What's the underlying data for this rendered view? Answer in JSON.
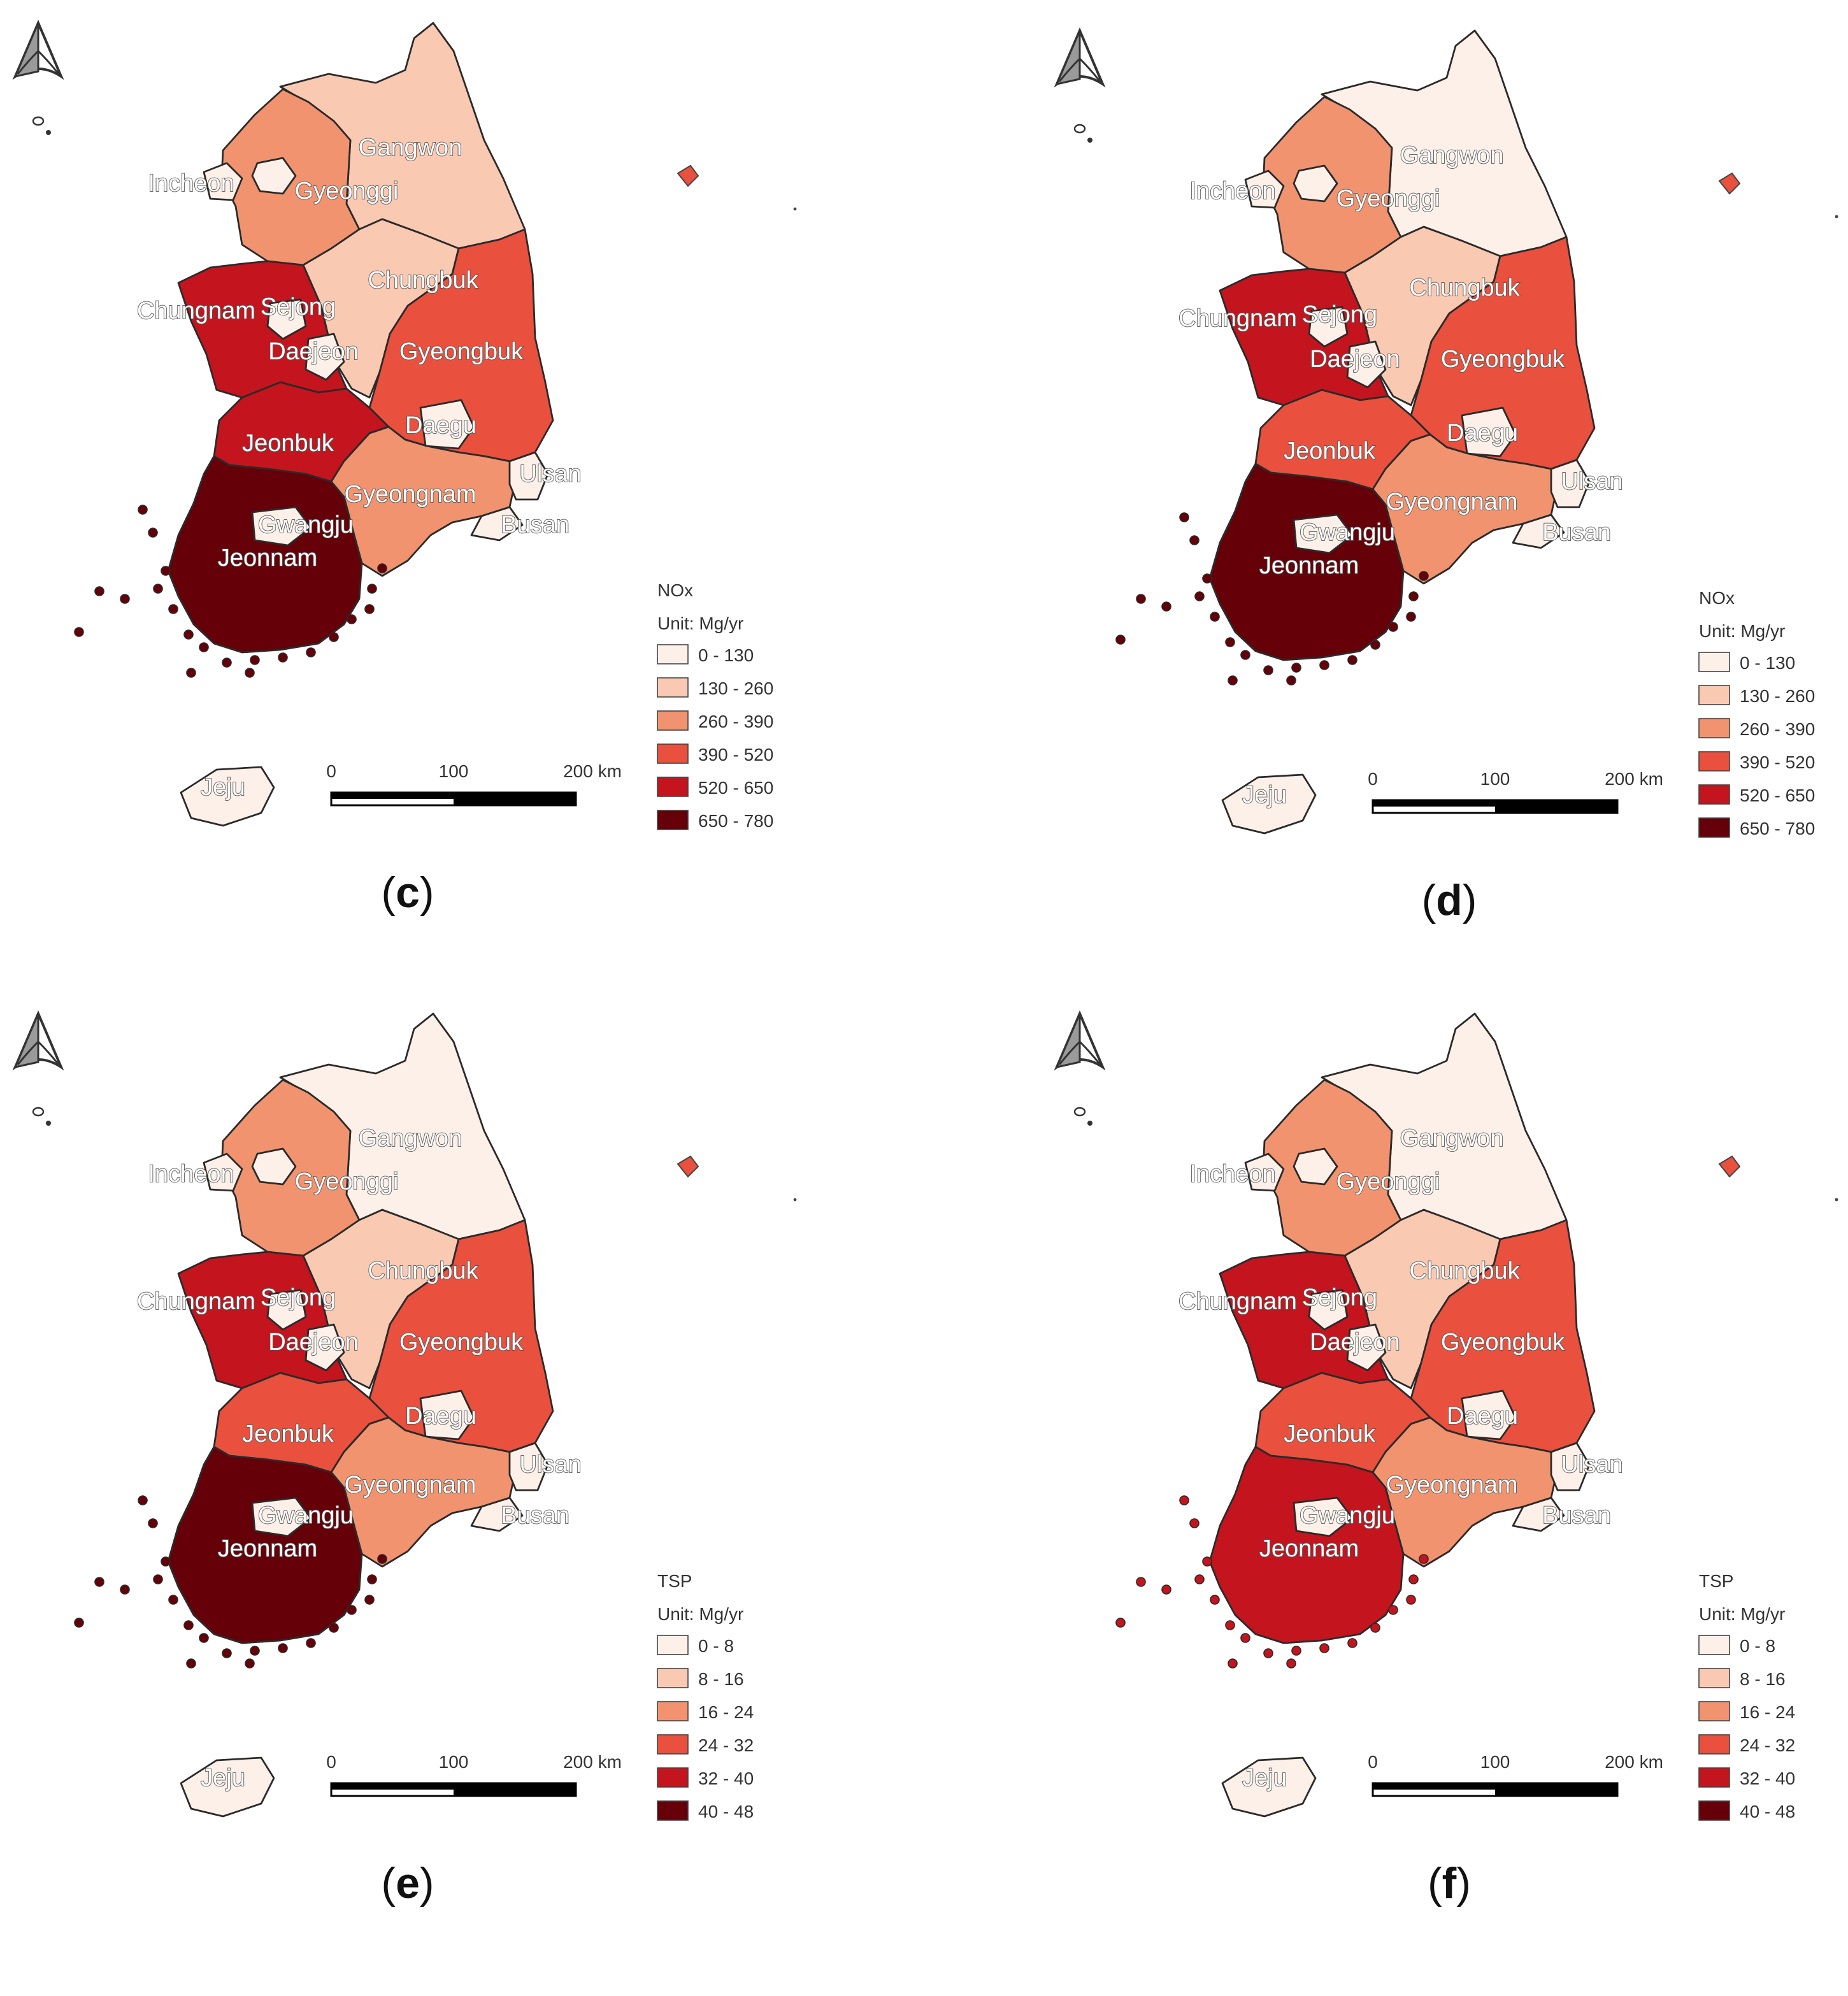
{
  "colors": {
    "c0": "#fdf0e8",
    "c1": "#f9c9b2",
    "c2": "#f2936f",
    "c3": "#e9503d",
    "c4": "#c4141e",
    "c5": "#650009",
    "border": "#2a2a2a",
    "label_fill": "#ffffff",
    "label_stroke": "#555555",
    "dokdo_fill": "#e9503d"
  },
  "legend_classes": {
    "nox": [
      "0 - 130",
      "130 - 260",
      "260 - 390",
      "390 - 520",
      "520 - 650",
      "650 - 780"
    ],
    "tsp": [
      "0 - 8",
      "8 - 16",
      "16 - 24",
      "24 - 32",
      "32 - 40",
      "40 - 48"
    ]
  },
  "scale_bar": {
    "tick_0": "0",
    "tick_100": "100",
    "tick_200": "200 km"
  },
  "region_labels": {
    "gangwon": "Gangwon",
    "incheon": "Incheon",
    "gyeonggi": "Gyeonggi",
    "chungbuk": "Chungbuk",
    "chungnam": "Chungnam",
    "sejong": "Sejong",
    "daejeon": "Daejeon",
    "gyeongbuk": "Gyeongbuk",
    "daegu": "Daegu",
    "jeonbuk": "Jeonbuk",
    "ulsan": "Ulsan",
    "gyeongnam": "Gyeongnam",
    "gwangju": "Gwangju",
    "busan": "Busan",
    "jeonnam": "Jeonnam",
    "jeju": "Jeju"
  },
  "panels": [
    {
      "letter": "c",
      "legend_title": "NOx",
      "legend_unit": "Unit: Mg/yr",
      "legend_key": "nox",
      "classes": {
        "gangwon": 1,
        "gyeonggi": 2,
        "incheon": 0,
        "seoul": 0,
        "chungbuk": 1,
        "chungnam": 4,
        "sejong": 0,
        "daejeon": 0,
        "gyeongbuk": 3,
        "daegu": 0,
        "jeonbuk": 4,
        "gwangju": 0,
        "jeonnam": 5,
        "gyeongnam": 2,
        "ulsan": 0,
        "busan": 0,
        "jeju": 0
      }
    },
    {
      "letter": "d",
      "legend_title": "NOx",
      "legend_unit": "Unit: Mg/yr",
      "legend_key": "nox",
      "classes": {
        "gangwon": 0,
        "gyeonggi": 2,
        "incheon": 0,
        "seoul": 0,
        "chungbuk": 1,
        "chungnam": 4,
        "sejong": 0,
        "daejeon": 0,
        "gyeongbuk": 3,
        "daegu": 0,
        "jeonbuk": 3,
        "gwangju": 0,
        "jeonnam": 5,
        "gyeongnam": 2,
        "ulsan": 0,
        "busan": 0,
        "jeju": 0
      }
    },
    {
      "letter": "e",
      "legend_title": "TSP",
      "legend_unit": "Unit: Mg/yr",
      "legend_key": "tsp",
      "classes": {
        "gangwon": 0,
        "gyeonggi": 2,
        "incheon": 0,
        "seoul": 0,
        "chungbuk": 1,
        "chungnam": 4,
        "sejong": 0,
        "daejeon": 0,
        "gyeongbuk": 3,
        "daegu": 0,
        "jeonbuk": 3,
        "gwangju": 0,
        "jeonnam": 5,
        "gyeongnam": 2,
        "ulsan": 0,
        "busan": 0,
        "jeju": 0
      }
    },
    {
      "letter": "f",
      "legend_title": "TSP",
      "legend_unit": "Unit: Mg/yr",
      "legend_key": "tsp",
      "classes": {
        "gangwon": 0,
        "gyeonggi": 2,
        "incheon": 0,
        "seoul": 0,
        "chungbuk": 1,
        "chungnam": 4,
        "sejong": 0,
        "daejeon": 0,
        "gyeongbuk": 3,
        "daegu": 0,
        "jeonbuk": 3,
        "gwangju": 0,
        "jeonnam": 4,
        "gyeongnam": 2,
        "ulsan": 0,
        "busan": 0,
        "jeju": 0
      }
    }
  ]
}
